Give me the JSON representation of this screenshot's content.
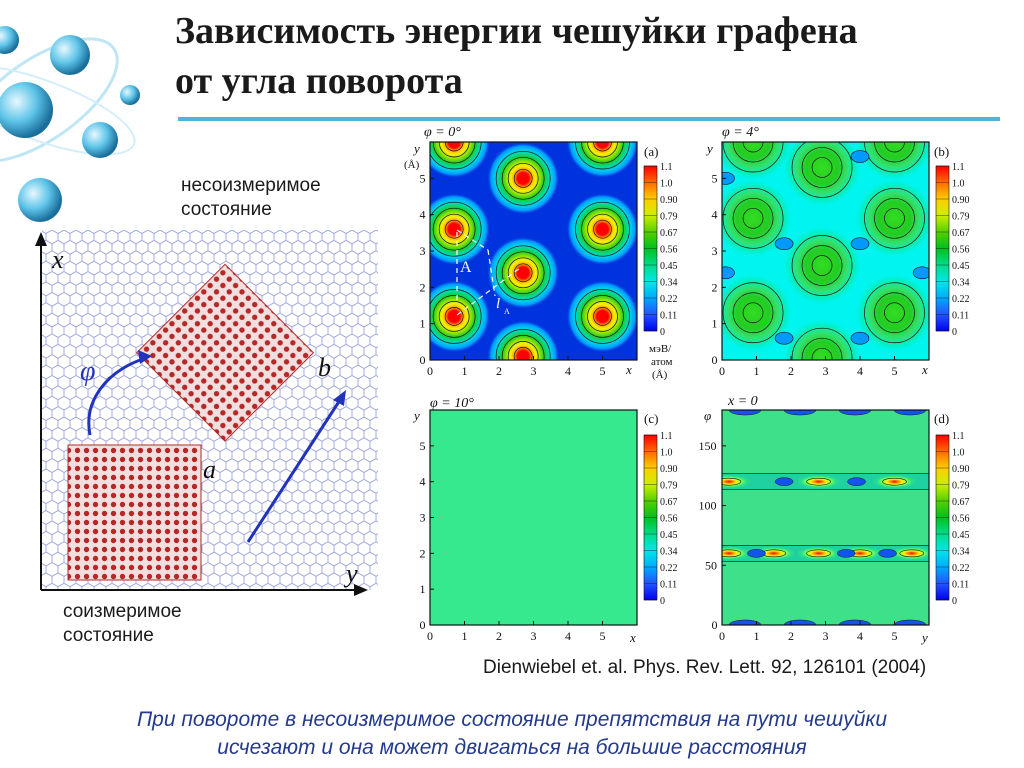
{
  "slide": {
    "title_line1": "Зависимость энергии чешуйки графена",
    "title_line2": "от угла поворота",
    "label_incommensurate_1": "несоизмеримое",
    "label_incommensurate_2": "состояние",
    "label_commensurate_1": "соизмеримое",
    "label_commensurate_2": "состояние",
    "citation": "Dienwiebel et. al. Phys. Rev. Lett. 92, 126101 (2004)",
    "conclusion_1": "При повороте в несоизмеримое состояние препятствия на пути чешуйки",
    "conclusion_2": "исчезают и она может двигаться на большие расстояния",
    "accent_color": "#4bb8d8",
    "conclusion_color": "#243a8c",
    "decor_icon": "molecule-icon"
  },
  "schematic": {
    "axis_x": "x",
    "axis_y": "y",
    "angle": "φ",
    "flake_a": "a",
    "flake_b": "b"
  },
  "colorbar": {
    "ticks": [
      "1.1",
      "1.0",
      "0.90",
      "0.79",
      "0.67",
      "0.56",
      "0.45",
      "0.34",
      "0.22",
      "0.11",
      "0"
    ],
    "unit_1": "мэВ/",
    "unit_2": "атом",
    "unit_3": "(Å)"
  },
  "panels": {
    "a": {
      "letter": "(a)",
      "angle": "φ = 0°",
      "xlabel": "x",
      "ylabel": "y",
      "yunit": "(Å)",
      "xticks": [
        "0",
        "1",
        "2",
        "3",
        "4",
        "5"
      ],
      "yticks": [
        "0",
        "1",
        "2",
        "3",
        "4",
        "5"
      ],
      "marker_A": "A",
      "marker_l": "l",
      "marker_sub": "A"
    },
    "b": {
      "letter": "(b)",
      "angle": "φ = 4°",
      "xlabel": "x",
      "ylabel": "y",
      "xticks": [
        "0",
        "1",
        "2",
        "3",
        "4",
        "5"
      ],
      "yticks": [
        "0",
        "1",
        "2",
        "3",
        "4",
        "5"
      ]
    },
    "c": {
      "letter": "(c)",
      "angle": "φ = 10°",
      "xlabel": "x",
      "ylabel": "y",
      "xticks": [
        "0",
        "1",
        "2",
        "3",
        "4",
        "5"
      ],
      "yticks": [
        "0",
        "1",
        "2",
        "3",
        "4",
        "5"
      ]
    },
    "d": {
      "letter": "(d)",
      "angle": "x = 0",
      "xlabel": "y",
      "ylabel": "φ",
      "xticks": [
        "0",
        "1",
        "2",
        "3",
        "4",
        "5"
      ],
      "yticks": [
        "0",
        "50",
        "100",
        "150"
      ]
    }
  },
  "chart_data": [
    {
      "type": "heatmap",
      "panel": "a",
      "angle_deg": 0,
      "xlim": [
        0,
        6
      ],
      "ylim": [
        0,
        6
      ],
      "zlim": [
        0,
        1.1
      ],
      "maxima": [
        [
          0.7,
          3.6
        ],
        [
          0.7,
          1.2
        ],
        [
          2.7,
          5.0
        ],
        [
          2.7,
          2.4
        ],
        [
          2.7,
          0.1
        ],
        [
          5.0,
          3.6
        ],
        [
          5.0,
          1.2
        ],
        [
          0.7,
          6.0
        ],
        [
          5.0,
          6.0
        ]
      ]
    },
    {
      "type": "heatmap",
      "panel": "b",
      "angle_deg": 4,
      "xlim": [
        0,
        6
      ],
      "ylim": [
        0,
        6
      ],
      "zlim": [
        0,
        1.1
      ]
    },
    {
      "type": "heatmap",
      "panel": "c",
      "angle_deg": 10,
      "xlim": [
        0,
        6
      ],
      "ylim": [
        0,
        6
      ],
      "zlim": [
        0,
        1.1
      ]
    },
    {
      "type": "heatmap",
      "panel": "d",
      "section": "x = 0",
      "xlim": [
        0,
        6
      ],
      "ylim": [
        0,
        180
      ],
      "zlim": [
        0,
        1.1
      ],
      "maxima": [
        [
          0.2,
          60
        ],
        [
          1.5,
          60
        ],
        [
          2.8,
          60
        ],
        [
          4.0,
          60
        ],
        [
          5.5,
          60
        ],
        [
          0.2,
          120
        ],
        [
          2.8,
          120
        ],
        [
          5.0,
          120
        ]
      ]
    }
  ]
}
